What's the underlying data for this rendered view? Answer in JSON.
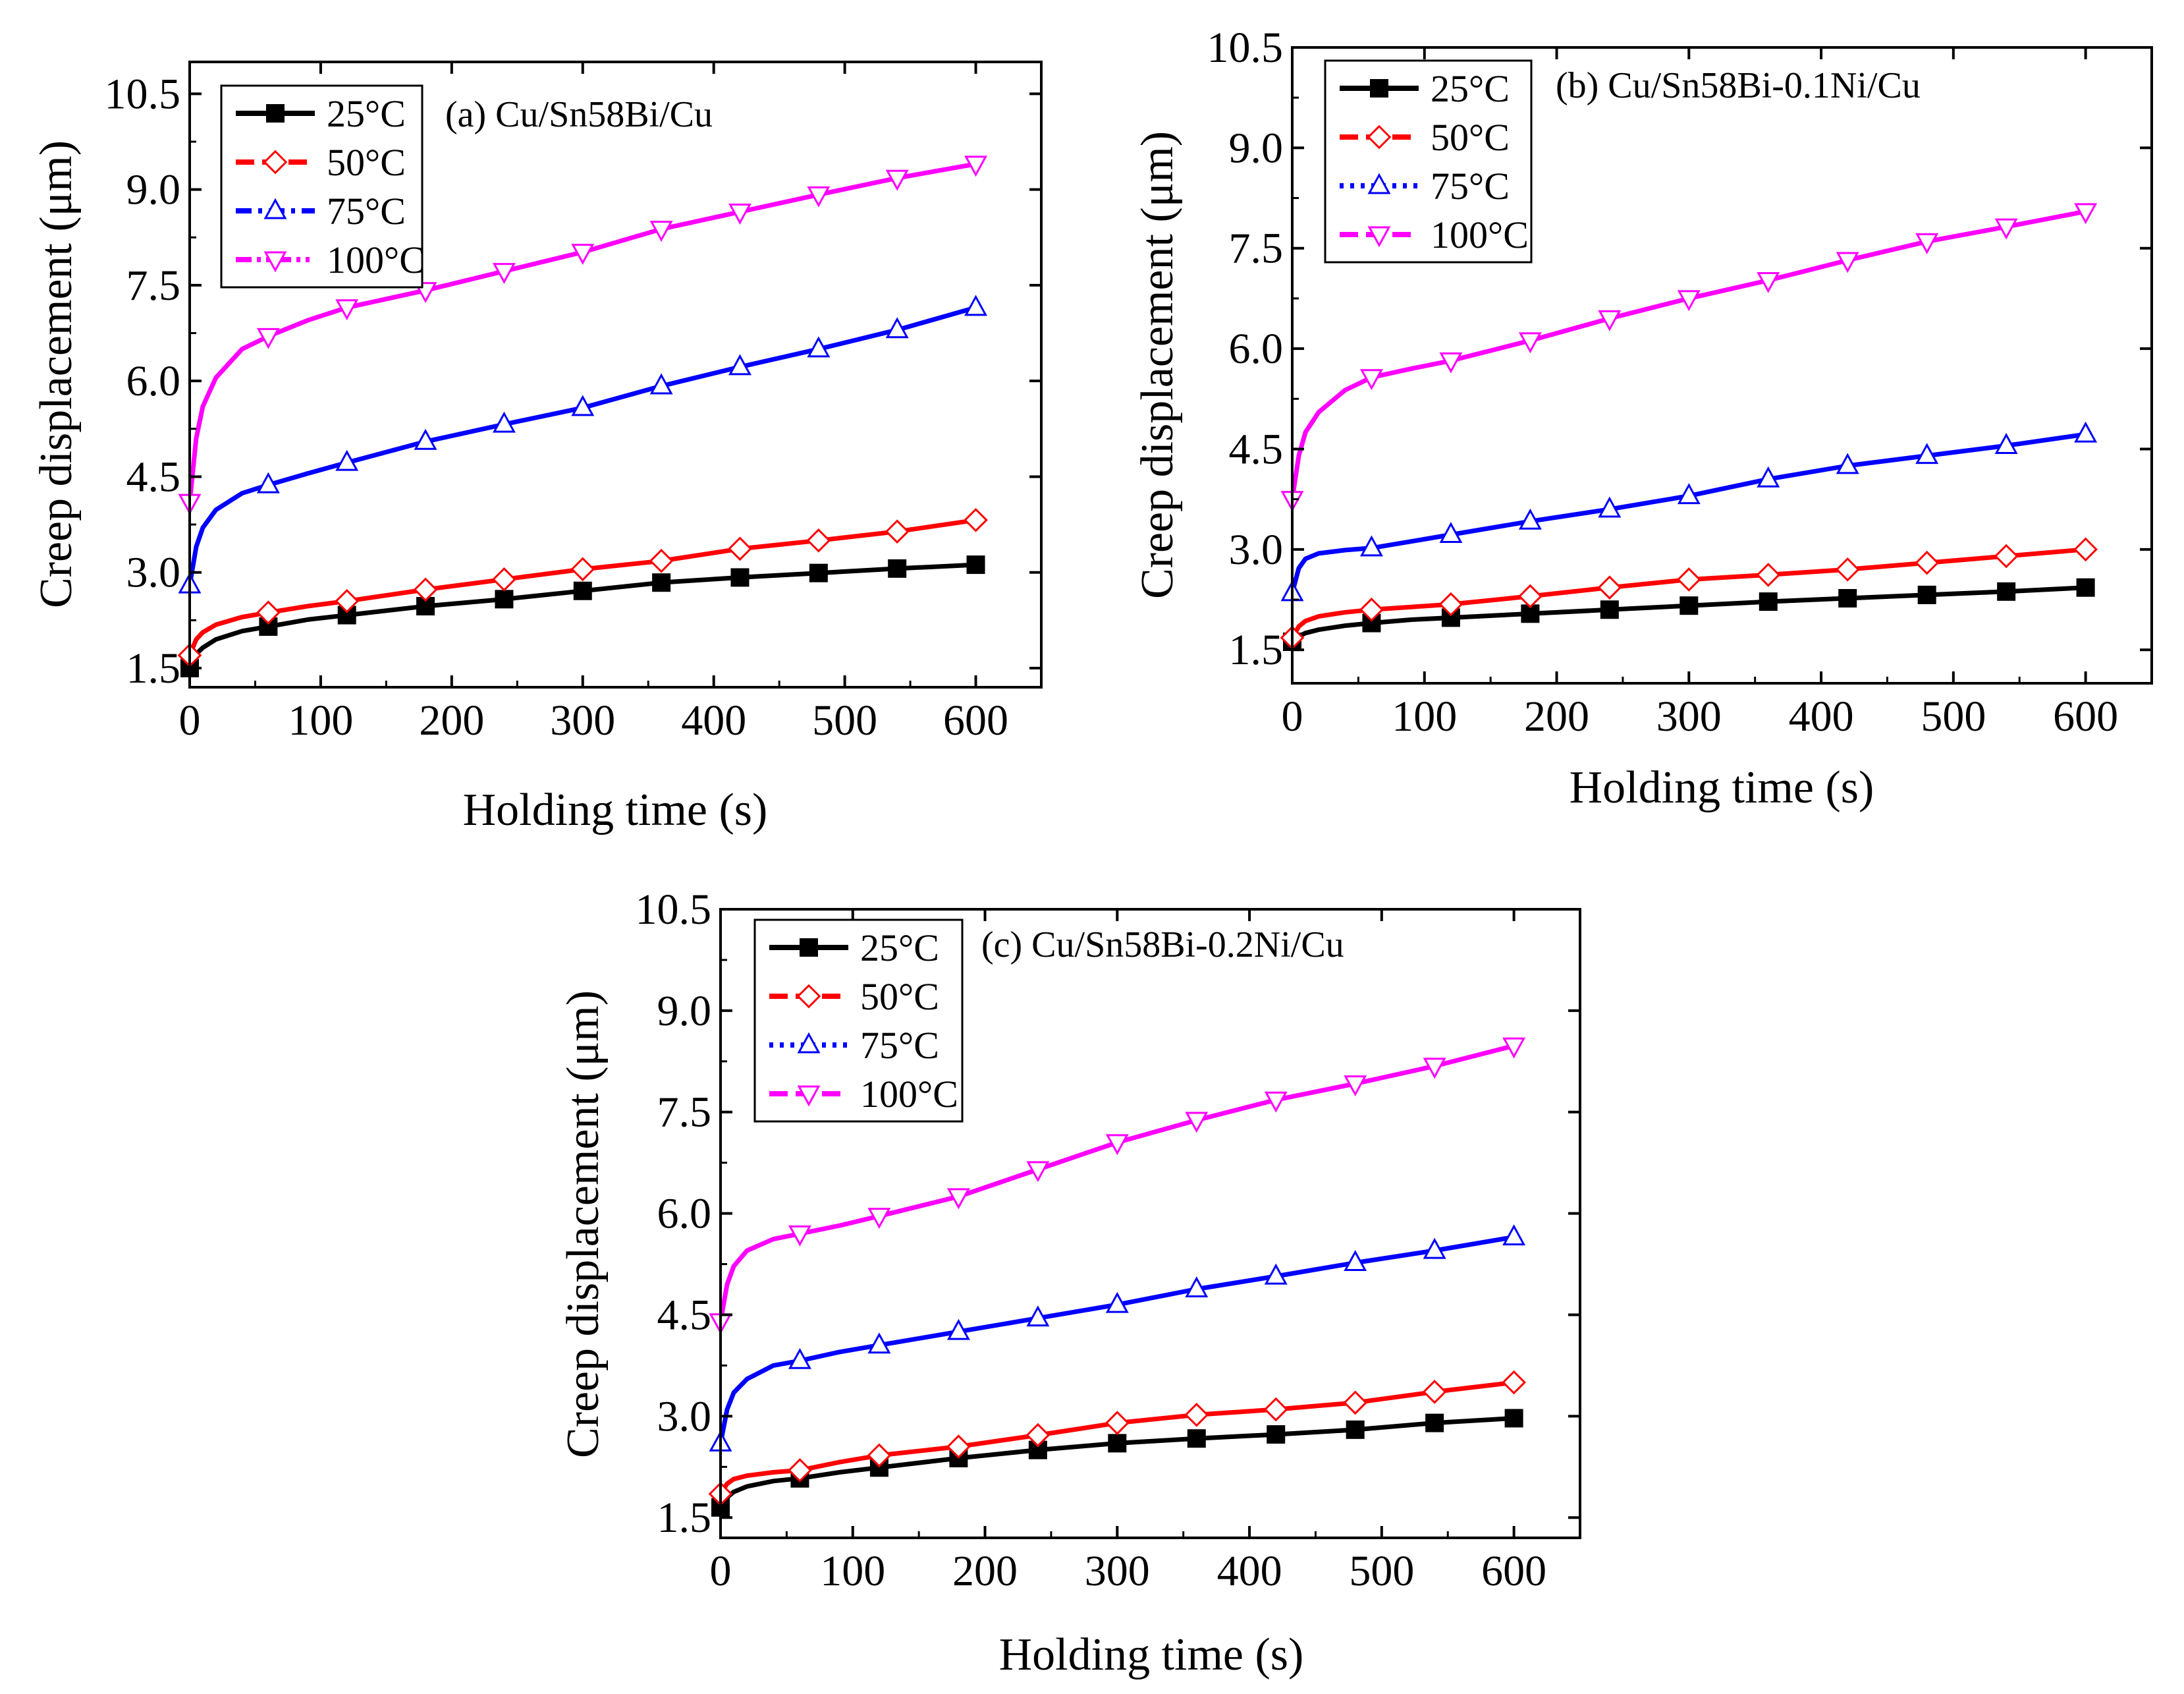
{
  "figure": {
    "background": "#ffffff"
  },
  "chart_data": [
    {
      "id": "a",
      "type": "line",
      "title": "(a) Cu/Sn58Bi/Cu",
      "xlabel": "Holding time (s)",
      "ylabel": "Creep displacement (μm)",
      "xlim": [
        0,
        650
      ],
      "ylim": [
        1.2,
        11.0
      ],
      "xticks": [
        0,
        100,
        200,
        300,
        400,
        500,
        600
      ],
      "xtick_labels": [
        "0",
        "100",
        "200",
        "300",
        "400",
        "500",
        "600"
      ],
      "yticks": [
        1.5,
        3.0,
        4.5,
        6.0,
        7.5,
        9.0,
        10.5
      ],
      "ytick_labels": [
        "1.5",
        "3.0",
        "4.5",
        "6.0",
        "7.5",
        "9.0",
        "10.5"
      ],
      "legend_position": "top-left",
      "series": [
        {
          "name": "25°C",
          "color": "#000000",
          "marker": "square",
          "dash": "solid",
          "x": [
            0,
            5,
            10,
            20,
            40,
            60,
            90,
            120,
            180,
            240,
            300,
            360,
            420,
            480,
            540,
            600
          ],
          "y": [
            1.5,
            1.72,
            1.82,
            1.95,
            2.08,
            2.15,
            2.26,
            2.33,
            2.47,
            2.58,
            2.71,
            2.84,
            2.92,
            2.99,
            3.06,
            3.12
          ],
          "markers_x": [
            0,
            60,
            120,
            180,
            240,
            300,
            360,
            420,
            480,
            540,
            600
          ],
          "markers_y": [
            1.5,
            2.15,
            2.33,
            2.47,
            2.58,
            2.71,
            2.84,
            2.92,
            2.99,
            3.06,
            3.12
          ]
        },
        {
          "name": "50°C",
          "color": "#ff0000",
          "marker": "diamond",
          "dash": "dash",
          "x": [
            0,
            5,
            10,
            20,
            40,
            60,
            90,
            120,
            180,
            240,
            300,
            360,
            420,
            480,
            540,
            600
          ],
          "y": [
            1.7,
            1.95,
            2.06,
            2.18,
            2.3,
            2.37,
            2.47,
            2.55,
            2.73,
            2.89,
            3.05,
            3.18,
            3.37,
            3.5,
            3.64,
            3.82
          ],
          "markers_x": [
            0,
            60,
            120,
            180,
            240,
            300,
            360,
            420,
            480,
            540,
            600
          ],
          "markers_y": [
            1.7,
            2.37,
            2.55,
            2.73,
            2.89,
            3.05,
            3.18,
            3.37,
            3.5,
            3.64,
            3.82
          ]
        },
        {
          "name": "75°C",
          "color": "#0000ff",
          "marker": "triangle-up",
          "dash": "dashdot",
          "x": [
            0,
            5,
            10,
            20,
            40,
            60,
            90,
            120,
            180,
            240,
            300,
            360,
            420,
            480,
            540,
            600
          ],
          "y": [
            2.8,
            3.4,
            3.7,
            3.98,
            4.24,
            4.37,
            4.55,
            4.72,
            5.05,
            5.32,
            5.58,
            5.92,
            6.22,
            6.5,
            6.8,
            7.15
          ],
          "markers_x": [
            0,
            60,
            120,
            180,
            240,
            300,
            360,
            420,
            480,
            540,
            600
          ],
          "markers_y": [
            2.8,
            4.37,
            4.72,
            5.05,
            5.32,
            5.58,
            5.92,
            6.22,
            6.5,
            6.8,
            7.15
          ]
        },
        {
          "name": "100°C",
          "color": "#ff00ff",
          "marker": "triangle-down",
          "dash": "dashdotdot",
          "x": [
            0,
            5,
            10,
            20,
            40,
            60,
            90,
            120,
            180,
            240,
            300,
            360,
            420,
            480,
            540,
            600
          ],
          "y": [
            4.1,
            5.1,
            5.6,
            6.05,
            6.5,
            6.7,
            6.95,
            7.15,
            7.42,
            7.72,
            8.02,
            8.38,
            8.65,
            8.92,
            9.18,
            9.4
          ],
          "markers_x": [
            0,
            60,
            120,
            180,
            240,
            300,
            360,
            420,
            480,
            540,
            600
          ],
          "markers_y": [
            4.1,
            6.7,
            7.15,
            7.42,
            7.72,
            8.02,
            8.38,
            8.65,
            8.92,
            9.18,
            9.4
          ]
        }
      ]
    },
    {
      "id": "b",
      "type": "line",
      "title": "(b) Cu/Sn58Bi-0.1Ni/Cu",
      "xlabel": "Holding time (s)",
      "ylabel": "Creep displacement (μm)",
      "xlim": [
        0,
        650
      ],
      "ylim": [
        1.0,
        10.5
      ],
      "xticks": [
        0,
        100,
        200,
        300,
        400,
        500,
        600
      ],
      "xtick_labels": [
        "0",
        "100",
        "200",
        "300",
        "400",
        "500",
        "600"
      ],
      "yticks": [
        1.5,
        3.0,
        4.5,
        6.0,
        7.5,
        9.0,
        10.5
      ],
      "ytick_labels": [
        "1.5",
        "3.0",
        "4.5",
        "6.0",
        "7.5",
        "9.0",
        "10.5"
      ],
      "legend_position": "top-left",
      "series": [
        {
          "name": "25°C",
          "color": "#000000",
          "marker": "square",
          "dash": "solid",
          "x": [
            0,
            5,
            10,
            20,
            40,
            60,
            90,
            120,
            180,
            240,
            300,
            360,
            420,
            480,
            540,
            600
          ],
          "y": [
            1.62,
            1.7,
            1.75,
            1.8,
            1.86,
            1.9,
            1.95,
            1.98,
            2.04,
            2.1,
            2.16,
            2.22,
            2.27,
            2.32,
            2.37,
            2.43
          ],
          "markers_x": [
            0,
            60,
            120,
            180,
            240,
            300,
            360,
            420,
            480,
            540,
            600
          ],
          "markers_y": [
            1.62,
            1.9,
            1.98,
            2.04,
            2.1,
            2.16,
            2.22,
            2.27,
            2.32,
            2.37,
            2.43
          ]
        },
        {
          "name": "50°C",
          "color": "#ff0000",
          "marker": "diamond",
          "dash": "dash",
          "x": [
            0,
            5,
            10,
            20,
            40,
            60,
            90,
            120,
            180,
            240,
            300,
            360,
            420,
            480,
            540,
            600
          ],
          "y": [
            1.68,
            1.85,
            1.93,
            2.0,
            2.06,
            2.1,
            2.14,
            2.18,
            2.3,
            2.43,
            2.55,
            2.62,
            2.7,
            2.8,
            2.9,
            3.0
          ],
          "markers_x": [
            0,
            60,
            120,
            180,
            240,
            300,
            360,
            420,
            480,
            540,
            600
          ],
          "markers_y": [
            1.68,
            2.1,
            2.18,
            2.3,
            2.43,
            2.55,
            2.62,
            2.7,
            2.8,
            2.9,
            3.0
          ]
        },
        {
          "name": "75°C",
          "color": "#0000ff",
          "marker": "triangle-up",
          "dash": "dot",
          "x": [
            0,
            5,
            10,
            20,
            40,
            60,
            90,
            120,
            180,
            240,
            300,
            360,
            420,
            480,
            540,
            600
          ],
          "y": [
            2.35,
            2.72,
            2.86,
            2.94,
            2.99,
            3.02,
            3.12,
            3.22,
            3.42,
            3.6,
            3.8,
            4.05,
            4.25,
            4.4,
            4.55,
            4.72
          ],
          "markers_x": [
            0,
            60,
            120,
            180,
            240,
            300,
            360,
            420,
            480,
            540,
            600
          ],
          "markers_y": [
            2.35,
            3.02,
            3.22,
            3.42,
            3.6,
            3.8,
            4.05,
            4.25,
            4.4,
            4.55,
            4.72
          ]
        },
        {
          "name": "100°C",
          "color": "#ff00ff",
          "marker": "triangle-down",
          "dash": "dash",
          "x": [
            0,
            5,
            10,
            20,
            40,
            60,
            90,
            120,
            180,
            240,
            300,
            360,
            420,
            480,
            540,
            600
          ],
          "y": [
            3.75,
            4.4,
            4.75,
            5.05,
            5.38,
            5.57,
            5.7,
            5.82,
            6.12,
            6.45,
            6.75,
            7.02,
            7.32,
            7.6,
            7.82,
            8.05
          ],
          "markers_x": [
            0,
            60,
            120,
            180,
            240,
            300,
            360,
            420,
            480,
            540,
            600
          ],
          "markers_y": [
            3.75,
            5.57,
            5.82,
            6.12,
            6.45,
            6.75,
            7.02,
            7.32,
            7.6,
            7.82,
            8.05
          ]
        }
      ]
    },
    {
      "id": "c",
      "type": "line",
      "title": "(c)  Cu/Sn58Bi-0.2Ni/Cu",
      "xlabel": "Holding time (s)",
      "ylabel": "Creep displacement (μm)",
      "xlim": [
        0,
        650
      ],
      "ylim": [
        1.2,
        10.5
      ],
      "xticks": [
        0,
        100,
        200,
        300,
        400,
        500,
        600
      ],
      "xtick_labels": [
        "0",
        "100",
        "200",
        "300",
        "400",
        "500",
        "600"
      ],
      "yticks": [
        1.5,
        3.0,
        4.5,
        6.0,
        7.5,
        9.0,
        10.5
      ],
      "ytick_labels": [
        "1.5",
        "3.0",
        "4.5",
        "6.0",
        "7.5",
        "9.0",
        "10.5"
      ],
      "legend_position": "top-left",
      "series": [
        {
          "name": "25°C",
          "color": "#000000",
          "marker": "square",
          "dash": "solid",
          "x": [
            0,
            5,
            10,
            20,
            40,
            60,
            90,
            120,
            180,
            240,
            300,
            360,
            420,
            480,
            540,
            600
          ],
          "y": [
            1.65,
            1.8,
            1.88,
            1.96,
            2.04,
            2.08,
            2.17,
            2.24,
            2.38,
            2.5,
            2.6,
            2.67,
            2.73,
            2.8,
            2.9,
            2.97
          ],
          "markers_x": [
            0,
            60,
            120,
            180,
            240,
            300,
            360,
            420,
            480,
            540,
            600
          ],
          "markers_y": [
            1.65,
            2.08,
            2.24,
            2.38,
            2.5,
            2.6,
            2.67,
            2.73,
            2.8,
            2.9,
            2.97
          ]
        },
        {
          "name": "50°C",
          "color": "#ff0000",
          "marker": "diamond",
          "dash": "dash",
          "x": [
            0,
            5,
            10,
            20,
            40,
            60,
            90,
            120,
            180,
            240,
            300,
            360,
            420,
            480,
            540,
            600
          ],
          "y": [
            1.85,
            2.0,
            2.07,
            2.12,
            2.17,
            2.2,
            2.32,
            2.42,
            2.55,
            2.72,
            2.9,
            3.02,
            3.1,
            3.2,
            3.36,
            3.5
          ],
          "markers_x": [
            0,
            60,
            120,
            180,
            240,
            300,
            360,
            420,
            480,
            540,
            600
          ],
          "markers_y": [
            1.85,
            2.2,
            2.42,
            2.55,
            2.72,
            2.9,
            3.02,
            3.1,
            3.2,
            3.36,
            3.5
          ]
        },
        {
          "name": "75°C",
          "color": "#0000ff",
          "marker": "triangle-up",
          "dash": "dot",
          "x": [
            0,
            5,
            10,
            20,
            40,
            60,
            90,
            120,
            180,
            240,
            300,
            360,
            420,
            480,
            540,
            600
          ],
          "y": [
            2.6,
            3.1,
            3.35,
            3.55,
            3.75,
            3.82,
            3.95,
            4.05,
            4.25,
            4.45,
            4.65,
            4.88,
            5.07,
            5.27,
            5.45,
            5.65
          ],
          "markers_x": [
            0,
            60,
            120,
            180,
            240,
            300,
            360,
            420,
            480,
            540,
            600
          ],
          "markers_y": [
            2.6,
            3.82,
            4.05,
            4.25,
            4.45,
            4.65,
            4.88,
            5.07,
            5.27,
            5.45,
            5.65
          ]
        },
        {
          "name": "100°C",
          "color": "#ff00ff",
          "marker": "triangle-down",
          "dash": "dash",
          "x": [
            0,
            5,
            10,
            20,
            40,
            60,
            90,
            120,
            180,
            240,
            300,
            360,
            420,
            480,
            540,
            600
          ],
          "y": [
            4.4,
            4.95,
            5.22,
            5.45,
            5.62,
            5.7,
            5.82,
            5.96,
            6.25,
            6.65,
            7.05,
            7.38,
            7.68,
            7.92,
            8.18,
            8.48
          ],
          "markers_x": [
            0,
            60,
            120,
            180,
            240,
            300,
            360,
            420,
            480,
            540,
            600
          ],
          "markers_y": [
            4.4,
            5.7,
            5.96,
            6.25,
            6.65,
            7.05,
            7.38,
            7.68,
            7.92,
            8.18,
            8.48
          ]
        }
      ]
    }
  ]
}
